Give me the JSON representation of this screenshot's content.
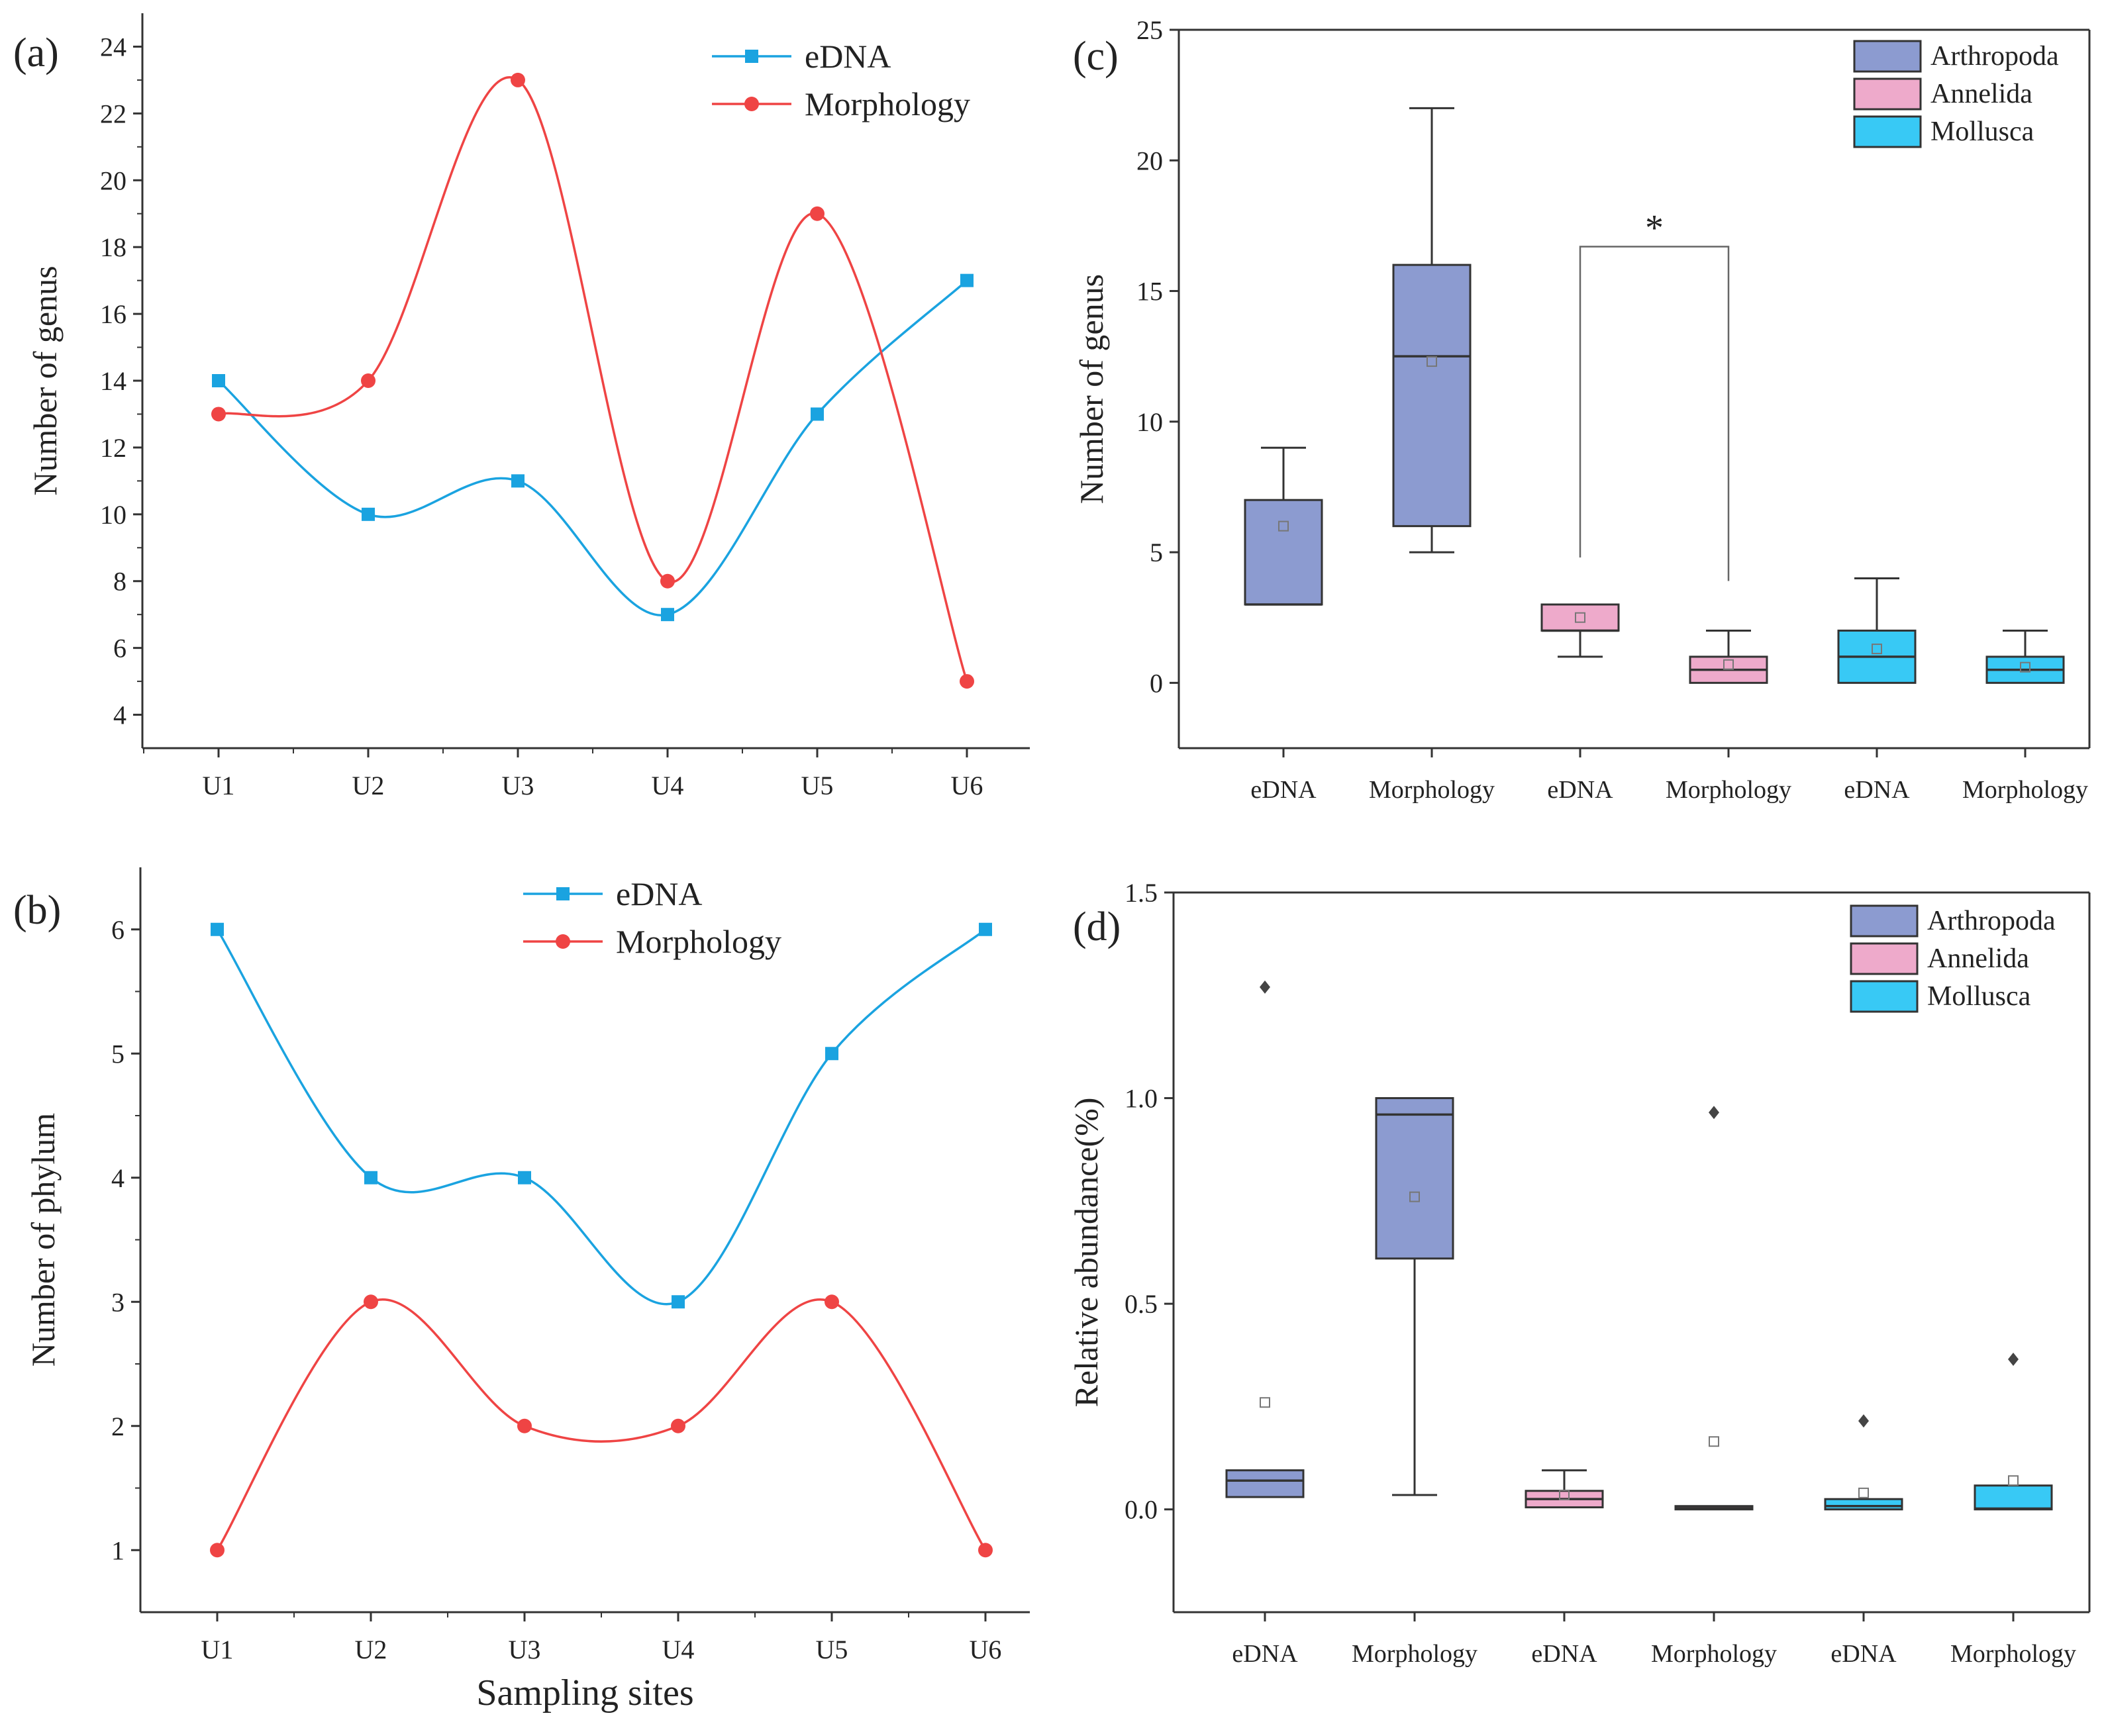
{
  "figure": {
    "colors": {
      "edna": "#1aa3e0",
      "morphology": "#ef4444",
      "arthropoda": "#8c9bd0",
      "annelida": "#eeaacb",
      "mollusca": "#38c9f5",
      "axis": "#333333"
    }
  },
  "chart_data": [
    {
      "id": "a",
      "type": "line",
      "panel_label": "(a)",
      "ylabel": "Number of genus",
      "xlabel": "",
      "categories": [
        "U1",
        "U2",
        "U3",
        "U4",
        "U5",
        "U6"
      ],
      "ylim": [
        3,
        25
      ],
      "yticks": [
        4,
        6,
        8,
        10,
        12,
        14,
        16,
        18,
        20,
        22,
        24
      ],
      "legend_position": "top-center",
      "series": [
        {
          "name": "eDNA",
          "marker": "square",
          "color_key": "edna",
          "values": [
            14,
            10,
            11,
            7,
            13,
            17
          ]
        },
        {
          "name": "Morphology",
          "marker": "circle",
          "color_key": "morphology",
          "values": [
            13,
            14,
            23,
            8,
            19,
            5
          ]
        }
      ]
    },
    {
      "id": "b",
      "type": "line",
      "panel_label": "(b)",
      "ylabel": "Number of phylum",
      "xlabel": "Sampling sites",
      "categories": [
        "U1",
        "U2",
        "U3",
        "U4",
        "U5",
        "U6"
      ],
      "ylim": [
        0.5,
        6.5
      ],
      "yticks": [
        1,
        2,
        3,
        4,
        5,
        6
      ],
      "legend_position": "top-center",
      "series": [
        {
          "name": "eDNA",
          "marker": "square",
          "color_key": "edna",
          "values": [
            6,
            4,
            4,
            3,
            5,
            6
          ]
        },
        {
          "name": "Morphology",
          "marker": "circle",
          "color_key": "morphology",
          "values": [
            1,
            3,
            2,
            2,
            3,
            1
          ]
        }
      ]
    },
    {
      "id": "c",
      "type": "box",
      "panel_label": "(c)",
      "ylabel": "Number of genus",
      "categories": [
        "eDNA",
        "Morphology",
        "eDNA",
        "Morphology",
        "eDNA",
        "Morphology"
      ],
      "ylim": [
        -2.5,
        25
      ],
      "yticks": [
        0,
        5,
        10,
        15,
        20,
        25
      ],
      "legend_position": "top-right",
      "legend": [
        "Arthropoda",
        "Annelida",
        "Mollusca"
      ],
      "significance": {
        "label": "*",
        "between": [
          2,
          3
        ],
        "y": 16.7
      },
      "boxes": [
        {
          "group": "Arthropoda",
          "color_key": "arthropoda",
          "whisker_low": 3,
          "q1": 3,
          "median": 3,
          "q3": 7,
          "whisker_high": 9,
          "mean": 6
        },
        {
          "group": "Arthropoda",
          "color_key": "arthropoda",
          "whisker_low": 5,
          "q1": 6,
          "median": 12.5,
          "q3": 16,
          "whisker_high": 22,
          "mean": 12.3
        },
        {
          "group": "Annelida",
          "color_key": "annelida",
          "whisker_low": 1,
          "q1": 2,
          "median": 2,
          "q3": 3,
          "whisker_high": 3,
          "mean": 2.5
        },
        {
          "group": "Annelida",
          "color_key": "annelida",
          "whisker_low": 0,
          "q1": 0,
          "median": 0.5,
          "q3": 1,
          "whisker_high": 2,
          "mean": 0.7
        },
        {
          "group": "Mollusca",
          "color_key": "mollusca",
          "whisker_low": 0,
          "q1": 0,
          "median": 1,
          "q3": 2,
          "whisker_high": 4,
          "mean": 1.3
        },
        {
          "group": "Mollusca",
          "color_key": "mollusca",
          "whisker_low": 0,
          "q1": 0,
          "median": 0.5,
          "q3": 1,
          "whisker_high": 2,
          "mean": 0.6
        }
      ]
    },
    {
      "id": "d",
      "type": "box",
      "panel_label": "(d)",
      "ylabel": "Relative abundance(%)",
      "categories": [
        "eDNA",
        "Morphology",
        "eDNA",
        "Morphology",
        "eDNA",
        "Morphology"
      ],
      "ylim": [
        -0.25,
        1.5
      ],
      "yticks": [
        0.0,
        0.5,
        1.0,
        1.5
      ],
      "ytick_labels": [
        "0.0",
        "0.5",
        "1.0",
        "1.5"
      ],
      "legend_position": "top-right",
      "legend": [
        "Arthropoda",
        "Annelida",
        "Mollusca"
      ],
      "boxes": [
        {
          "group": "Arthropoda",
          "color_key": "arthropoda",
          "whisker_low": 0.03,
          "q1": 0.03,
          "median": 0.07,
          "q3": 0.095,
          "whisker_high": 0.095,
          "mean": 0.26,
          "outliers": [
            1.27
          ]
        },
        {
          "group": "Arthropoda",
          "color_key": "arthropoda",
          "whisker_low": 0.035,
          "q1": 0.61,
          "median": 0.96,
          "q3": 1.0,
          "whisker_high": 1.0,
          "mean": 0.76,
          "outliers": []
        },
        {
          "group": "Annelida",
          "color_key": "annelida",
          "whisker_low": 0.005,
          "q1": 0.005,
          "median": 0.025,
          "q3": 0.045,
          "whisker_high": 0.095,
          "mean": 0.035,
          "outliers": []
        },
        {
          "group": "Annelida",
          "color_key": "annelida",
          "whisker_low": 0.0,
          "q1": 0.0,
          "median": 0.003,
          "q3": 0.008,
          "whisker_high": 0.008,
          "mean": 0.165,
          "outliers": [
            0.965
          ]
        },
        {
          "group": "Mollusca",
          "color_key": "mollusca",
          "whisker_low": 0.0,
          "q1": 0.0,
          "median": 0.008,
          "q3": 0.025,
          "whisker_high": 0.025,
          "mean": 0.04,
          "outliers": [
            0.215
          ]
        },
        {
          "group": "Mollusca",
          "color_key": "mollusca",
          "whisker_low": 0.0,
          "q1": 0.0,
          "median": 0.002,
          "q3": 0.058,
          "whisker_high": 0.058,
          "mean": 0.07,
          "outliers": [
            0.365
          ]
        }
      ]
    }
  ]
}
